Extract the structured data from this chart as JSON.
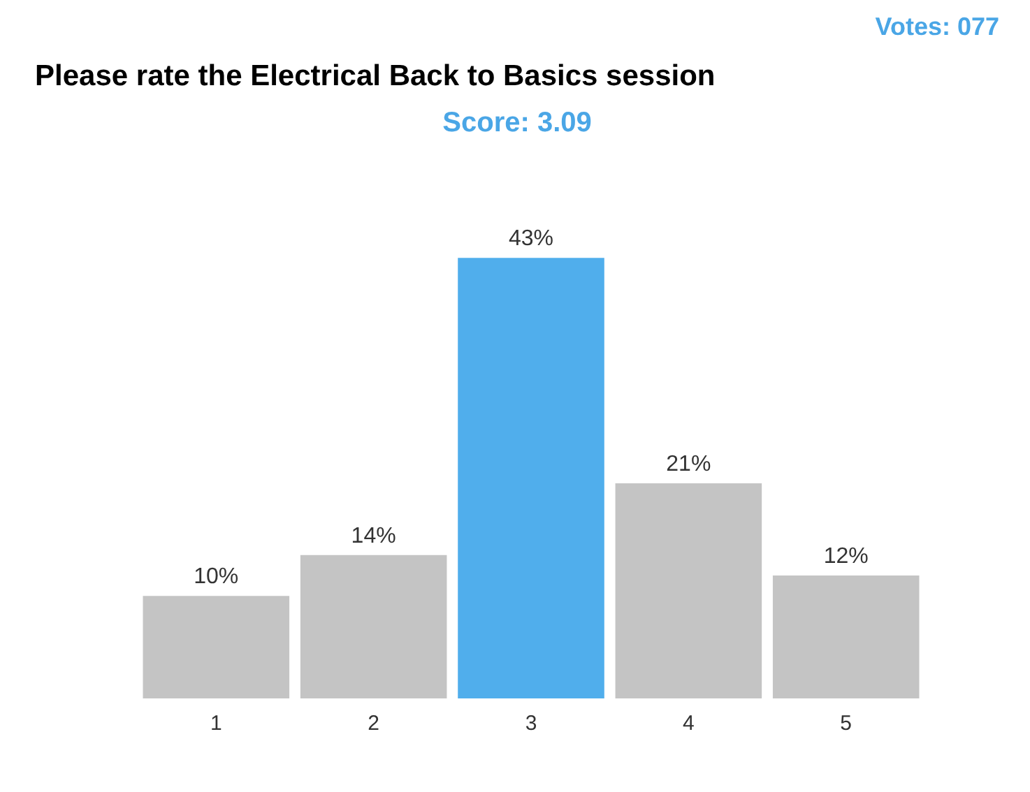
{
  "chart_data": {
    "type": "bar",
    "title": "Please rate the Electrical Back to Basics session",
    "categories": [
      "1",
      "2",
      "3",
      "4",
      "5"
    ],
    "values": [
      10,
      14,
      43,
      21,
      12
    ],
    "colors": [
      "#c4c4c4",
      "#c4c4c4",
      "#50aeec",
      "#c4c4c4",
      "#c4c4c4"
    ],
    "value_labels": [
      "10%",
      "14%",
      "43%",
      "21%",
      "12%"
    ],
    "annotations": [
      "Votes: 077",
      "Score: 3.09"
    ],
    "grid": false
  }
}
